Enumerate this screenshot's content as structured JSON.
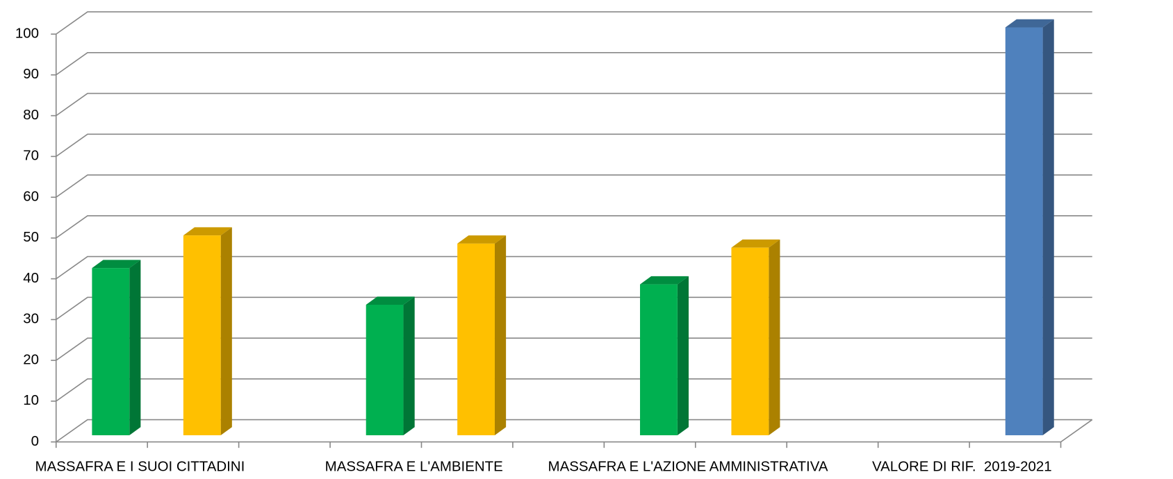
{
  "chart_data": {
    "type": "bar3d",
    "categories": [
      "MASSAFRA E I SUOI CITTADINI",
      "MASSAFRA E L'AMBIENTE",
      "MASSAFRA E L'AZIONE AMMINISTRATIVA",
      "VALORE DI RIF.  2019-2021"
    ],
    "series": [
      {
        "color": "#00b050",
        "values": [
          41,
          32,
          37,
          null
        ]
      },
      {
        "color": "#ffc000",
        "values": [
          49,
          47,
          46,
          null
        ]
      },
      {
        "color": "#4f81bd",
        "values": [
          null,
          null,
          null,
          100
        ]
      }
    ],
    "ylim": [
      0,
      100
    ],
    "yticks": [
      0,
      10,
      20,
      30,
      40,
      50,
      60,
      70,
      80,
      90,
      100
    ],
    "grid": true
  }
}
